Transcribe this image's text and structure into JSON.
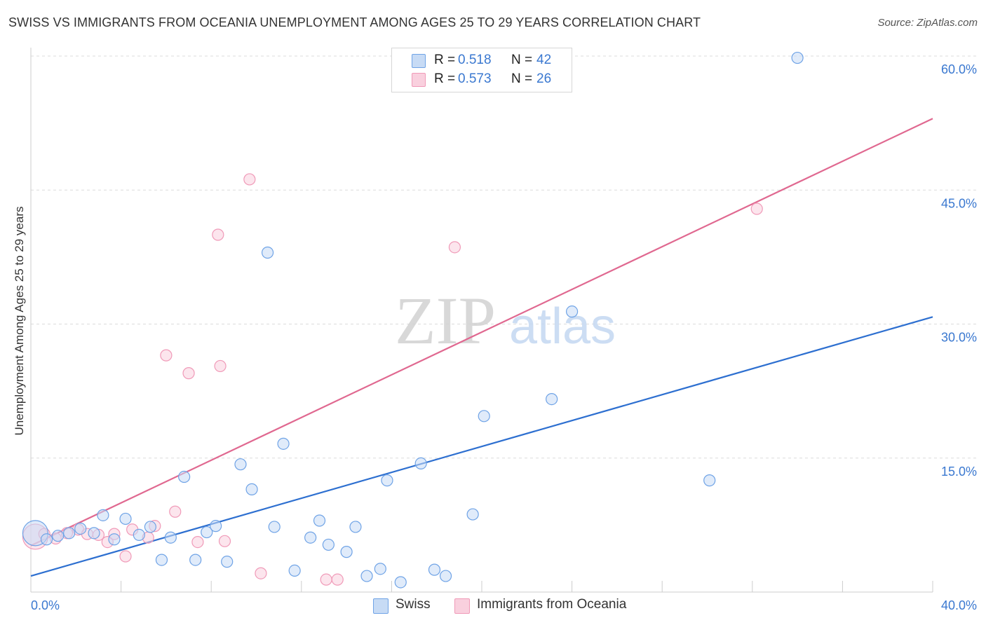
{
  "chart_data": {
    "type": "scatter",
    "title": "SWISS VS IMMIGRANTS FROM OCEANIA UNEMPLOYMENT AMONG AGES 25 TO 29 YEARS CORRELATION CHART",
    "source": "Source: ZipAtlas.com",
    "watermark": {
      "zip": "ZIP",
      "atlas": "atlas"
    },
    "xlabel": "",
    "ylabel": "Unemployment Among Ages 25 to 29 years",
    "xlim": [
      0,
      40
    ],
    "ylim": [
      0,
      60
    ],
    "x_tick_labels": {
      "min": "0.0%",
      "max": "40.0%"
    },
    "y_ticks": [
      {
        "value": 15,
        "label": "15.0%"
      },
      {
        "value": 30,
        "label": "30.0%"
      },
      {
        "value": 45,
        "label": "45.0%"
      },
      {
        "value": 60,
        "label": "60.0%"
      }
    ],
    "grid": true,
    "legend": {
      "placement": "top-center",
      "r_label": "R =",
      "n_label": "N =",
      "entries": [
        {
          "name": "Swiss",
          "r": "0.518",
          "n": "42"
        },
        {
          "name": "Immigrants from Oceania",
          "r": "0.573",
          "n": "26"
        }
      ]
    },
    "series": [
      {
        "name": "Swiss",
        "color": "#6fa3e6",
        "fill": "#c7dbf5",
        "line_color": "#2d6fd0",
        "trend": {
          "x": [
            0,
            40
          ],
          "y": [
            1.8,
            30.8
          ]
        },
        "points": [
          {
            "x": 0.2,
            "y": 6.6,
            "big": true
          },
          {
            "x": 0.7,
            "y": 5.9
          },
          {
            "x": 1.2,
            "y": 6.3
          },
          {
            "x": 1.7,
            "y": 6.6
          },
          {
            "x": 2.2,
            "y": 7.1
          },
          {
            "x": 2.8,
            "y": 6.6
          },
          {
            "x": 3.2,
            "y": 8.6
          },
          {
            "x": 3.7,
            "y": 5.9
          },
          {
            "x": 4.2,
            "y": 8.2
          },
          {
            "x": 4.8,
            "y": 6.4
          },
          {
            "x": 5.3,
            "y": 7.3
          },
          {
            "x": 5.8,
            "y": 3.6
          },
          {
            "x": 6.2,
            "y": 6.1
          },
          {
            "x": 6.8,
            "y": 12.9
          },
          {
            "x": 7.3,
            "y": 3.6
          },
          {
            "x": 7.8,
            "y": 6.7
          },
          {
            "x": 8.2,
            "y": 7.4
          },
          {
            "x": 8.7,
            "y": 3.4
          },
          {
            "x": 9.3,
            "y": 14.3
          },
          {
            "x": 9.8,
            "y": 11.5
          },
          {
            "x": 10.5,
            "y": 38.0
          },
          {
            "x": 10.8,
            "y": 7.3
          },
          {
            "x": 11.2,
            "y": 16.6
          },
          {
            "x": 11.7,
            "y": 2.4
          },
          {
            "x": 12.4,
            "y": 6.1
          },
          {
            "x": 12.8,
            "y": 8.0
          },
          {
            "x": 13.2,
            "y": 5.3
          },
          {
            "x": 14.0,
            "y": 4.5
          },
          {
            "x": 14.4,
            "y": 7.3
          },
          {
            "x": 14.9,
            "y": 1.8
          },
          {
            "x": 15.5,
            "y": 2.6
          },
          {
            "x": 15.8,
            "y": 12.5
          },
          {
            "x": 16.4,
            "y": 1.1
          },
          {
            "x": 17.3,
            "y": 14.4
          },
          {
            "x": 17.9,
            "y": 2.5
          },
          {
            "x": 18.4,
            "y": 1.8
          },
          {
            "x": 19.6,
            "y": 8.7
          },
          {
            "x": 20.1,
            "y": 19.7
          },
          {
            "x": 23.1,
            "y": 21.6
          },
          {
            "x": 24.0,
            "y": 31.4
          },
          {
            "x": 30.1,
            "y": 12.5
          },
          {
            "x": 34.0,
            "y": 59.8
          }
        ]
      },
      {
        "name": "Immigrants from Oceania",
        "color": "#f09ab8",
        "fill": "#f9d0de",
        "line_color": "#e06890",
        "trend": {
          "x": [
            0,
            40
          ],
          "y": [
            5.2,
            53.0
          ]
        },
        "points": [
          {
            "x": 0.2,
            "y": 6.2,
            "big": true
          },
          {
            "x": 0.6,
            "y": 6.5
          },
          {
            "x": 1.1,
            "y": 6.0
          },
          {
            "x": 1.6,
            "y": 6.6
          },
          {
            "x": 2.1,
            "y": 7.0
          },
          {
            "x": 2.5,
            "y": 6.5
          },
          {
            "x": 3.0,
            "y": 6.4
          },
          {
            "x": 3.4,
            "y": 5.6
          },
          {
            "x": 3.7,
            "y": 6.5
          },
          {
            "x": 4.2,
            "y": 4.0
          },
          {
            "x": 4.5,
            "y": 7.0
          },
          {
            "x": 5.2,
            "y": 6.1
          },
          {
            "x": 5.5,
            "y": 7.4
          },
          {
            "x": 6.0,
            "y": 26.5
          },
          {
            "x": 6.4,
            "y": 9.0
          },
          {
            "x": 7.0,
            "y": 24.5
          },
          {
            "x": 7.4,
            "y": 5.6
          },
          {
            "x": 8.3,
            "y": 40.0
          },
          {
            "x": 8.4,
            "y": 25.3
          },
          {
            "x": 8.6,
            "y": 5.7
          },
          {
            "x": 9.7,
            "y": 46.2
          },
          {
            "x": 10.2,
            "y": 2.1
          },
          {
            "x": 13.1,
            "y": 1.4
          },
          {
            "x": 13.6,
            "y": 1.4
          },
          {
            "x": 18.8,
            "y": 38.6
          },
          {
            "x": 32.2,
            "y": 42.9
          }
        ]
      }
    ]
  }
}
